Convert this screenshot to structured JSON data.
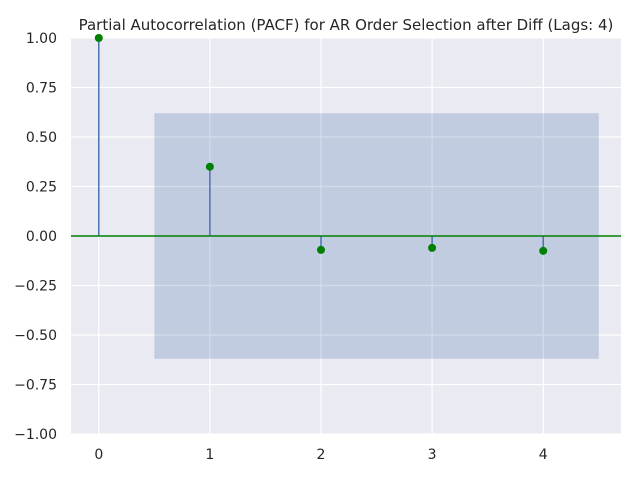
{
  "chart_data": {
    "type": "scatter",
    "title": "Partial Autocorrelation (PACF) for AR Order Selection after Diff (Lags: 4)",
    "xlabel": "",
    "ylabel": "",
    "x": [
      0,
      1,
      2,
      3,
      4
    ],
    "values": [
      1.0,
      0.35,
      -0.07,
      -0.06,
      -0.075
    ],
    "confidence_band": {
      "x_range": [
        0.5,
        4.5
      ],
      "lower": -0.62,
      "upper": 0.62
    },
    "xlim": [
      -0.25,
      4.7
    ],
    "ylim": [
      -1.0,
      1.0
    ],
    "xticks": [
      0,
      1,
      2,
      3,
      4
    ],
    "xtick_labels": [
      "0",
      "1",
      "2",
      "3",
      "4"
    ],
    "yticks": [
      1.0,
      0.75,
      0.5,
      0.25,
      0.0,
      -0.25,
      -0.5,
      -0.75,
      -1.0
    ],
    "ytick_labels": [
      "1.00",
      "0.75",
      "0.50",
      "0.25",
      "0.00",
      "−0.25",
      "−0.50",
      "−0.75",
      "−1.00"
    ],
    "grid": true,
    "colors": {
      "plot_background": "#EAEAF2",
      "grid": "#FFFFFF",
      "stem": "#4C72B0",
      "marker": "#008000",
      "zero_line": "#008000",
      "confidence_band": "#4C72B0"
    }
  }
}
